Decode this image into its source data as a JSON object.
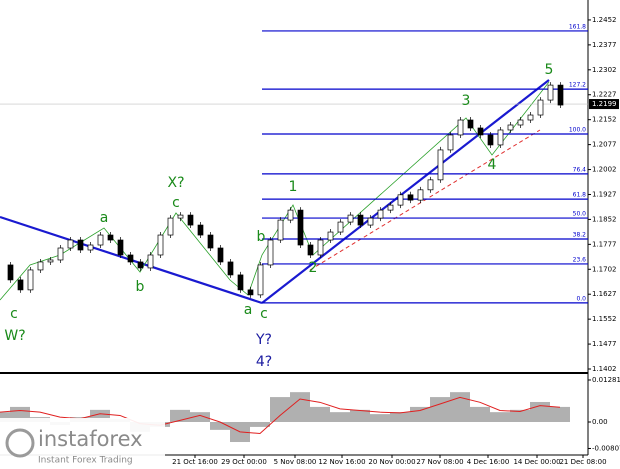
{
  "chart_data": [
    {
      "type": "candlestick",
      "current_price": 1.2199,
      "color": "#000000",
      "values": [
        1.1715,
        1.167,
        1.164,
        1.17,
        1.1724,
        1.173,
        1.1766,
        1.179,
        1.176,
        1.1775,
        1.1805,
        1.179,
        1.1745,
        1.1724,
        1.1706,
        1.1745,
        1.1805,
        1.1856,
        1.1865,
        1.1835,
        1.1805,
        1.1766,
        1.1724,
        1.1685,
        1.164,
        1.1625,
        1.1715,
        1.179,
        1.185,
        1.188,
        1.1775,
        1.1745,
        1.179,
        1.1814,
        1.1844,
        1.1865,
        1.1835,
        1.1856,
        1.188,
        1.1895,
        1.1926,
        1.191,
        1.1941,
        1.1971,
        1.2061,
        1.2106,
        1.2151,
        1.2127,
        1.2106,
        1.2076,
        1.2121,
        1.2136,
        1.2151,
        1.2166,
        1.2211,
        1.2256,
        1.2196
      ],
      "ylim": [
        1.1393,
        1.2512
      ],
      "yticks": [
        1.2452,
        1.2377,
        1.2302,
        1.2227,
        1.2152,
        1.2077,
        1.2002,
        1.1927,
        1.1852,
        1.1777,
        1.1702,
        1.1627,
        1.1552,
        1.1477,
        1.1402
      ],
      "xtick_labels": [
        "21 Oct 16:00",
        "29 Oct 00:00",
        "5 Nov 08:00",
        "12 Nov 16:00",
        "20 Nov 00:00",
        "27 Nov 08:00",
        "4 Dec 16:00",
        "14 Dec 00:00",
        "21 Dec 08:00"
      ],
      "fib_color": "#0000cc",
      "fib_levels": [
        {
          "label": "161.8",
          "value": 1.2419
        },
        {
          "label": "127.2",
          "value": 1.2244
        },
        {
          "label": "100.0",
          "value": 1.2109
        },
        {
          "label": "76.4",
          "value": 1.1989
        },
        {
          "label": "61.8",
          "value": 1.1913
        },
        {
          "label": "50.0",
          "value": 1.1856
        },
        {
          "label": "38.2",
          "value": 1.1793
        },
        {
          "label": "23.6",
          "value": 1.1718
        },
        {
          "label": "0.0",
          "value": 1.1601
        }
      ],
      "annotations": [
        {
          "text": "W?",
          "color": "#1a8a1a"
        },
        {
          "text": "c",
          "color": "#1a8a1a"
        },
        {
          "text": "a",
          "color": "#1a8a1a"
        },
        {
          "text": "b",
          "color": "#1a8a1a"
        },
        {
          "text": "X?",
          "color": "#1a8a1a"
        },
        {
          "text": "c",
          "color": "#1a8a1a"
        },
        {
          "text": "a",
          "color": "#1a8a1a"
        },
        {
          "text": "c",
          "color": "#1a8a1a"
        },
        {
          "text": "Y?",
          "color": "#1a1aa0"
        },
        {
          "text": "4?",
          "color": "#1a1aa0"
        },
        {
          "text": "b",
          "color": "#1a8a1a"
        },
        {
          "text": "1",
          "color": "#1a8a1a"
        },
        {
          "text": "2",
          "color": "#1a8a1a"
        },
        {
          "text": "3",
          "color": "#1a8a1a"
        },
        {
          "text": "4",
          "color": "#1a8a1a"
        },
        {
          "text": "5",
          "color": "#1a8a1a"
        }
      ]
    },
    {
      "type": "oscillator",
      "series": [
        {
          "color": "#b0b0b0",
          "values": [
            0.003,
            0.0046,
            0.0015,
            -0.0009,
            0.0015,
            0.0037,
            0.0009,
            -0.003,
            -0.0015,
            0.0037,
            0.003,
            -0.0024,
            -0.0061,
            -0.0015,
            0.0076,
            0.0091,
            0.0046,
            0.003,
            0.0037,
            0.0024,
            0.003,
            0.0046,
            0.0076,
            0.0091,
            0.0046,
            0.003,
            0.0037,
            0.0061,
            0.0046
          ]
        },
        {
          "color": "#e02020",
          "values": [
            0.003,
            0.0035,
            0.003,
            0.0015,
            0.001,
            0.0025,
            0.002,
            -0.0005,
            -0.001,
            0.0005,
            0.002,
            0.0,
            -0.003,
            -0.0035,
            0.002,
            0.007,
            0.006,
            0.004,
            0.0035,
            0.003,
            0.0028,
            0.0035,
            0.0055,
            0.0075,
            0.006,
            0.0035,
            0.0032,
            0.005,
            0.0045
          ]
        }
      ],
      "ylim": [
        -0.00945,
        0.01433
      ],
      "yticks": [
        0.01281,
        {
          "value": 0,
          "label": "0.00"
        },
        -0.00807
      ]
    }
  ],
  "logo": {
    "name": "instaforex",
    "tagline": "Instant Forex Trading"
  }
}
